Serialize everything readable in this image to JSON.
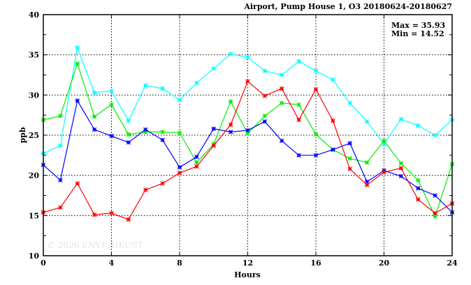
{
  "chart_data": {
    "type": "line",
    "title": "Airport, Pump House 1, O3 20180624-20180627",
    "xlabel": "Hours",
    "ylabel": "ppb",
    "xlim": [
      0,
      24
    ],
    "ylim": [
      10,
      40
    ],
    "xticks": [
      0,
      4,
      8,
      12,
      16,
      20,
      24
    ],
    "yticks": [
      10,
      15,
      20,
      25,
      30,
      35,
      40
    ],
    "grid": true,
    "annotations": [
      "Max = 35.93",
      "Min = 14.52"
    ],
    "watermark": "© 2026  ENVF, HKUST",
    "x": [
      0,
      1,
      2,
      3,
      4,
      5,
      6,
      7,
      8,
      9,
      10,
      11,
      12,
      13,
      14,
      15,
      16,
      17,
      18,
      19,
      20,
      21,
      22,
      23,
      24
    ],
    "series": [
      {
        "name": "cyan",
        "color": "#00ffff",
        "values": [
          22.7,
          23.7,
          35.9,
          30.3,
          30.5,
          26.8,
          31.2,
          30.8,
          29.4,
          31.5,
          33.3,
          35.1,
          34.7,
          33.0,
          32.5,
          34.2,
          33.0,
          31.9,
          29.0,
          26.7,
          23.9,
          27.0,
          26.2,
          25.0,
          26.9
        ]
      },
      {
        "name": "green",
        "color": "#00ee00",
        "values": [
          26.9,
          27.4,
          33.9,
          27.3,
          28.8,
          25.1,
          25.4,
          25.4,
          25.3,
          21.6,
          23.9,
          29.2,
          25.2,
          27.4,
          29.0,
          28.8,
          25.1,
          23.2,
          22.1,
          21.6,
          24.3,
          21.5,
          19.4,
          14.9,
          21.4
        ]
      },
      {
        "name": "blue",
        "color": "#0000ff",
        "values": [
          21.3,
          19.4,
          29.3,
          25.7,
          24.9,
          24.1,
          25.7,
          24.4,
          21.0,
          22.3,
          25.8,
          25.4,
          25.6,
          26.7,
          24.3,
          22.5,
          22.5,
          23.2,
          24.0,
          19.2,
          20.6,
          19.9,
          18.4,
          17.5,
          15.4
        ]
      },
      {
        "name": "red",
        "color": "#ff0000",
        "values": [
          15.4,
          16.0,
          19.0,
          15.1,
          15.3,
          14.5,
          18.2,
          19.0,
          20.3,
          21.1,
          23.7,
          26.3,
          31.7,
          29.9,
          30.8,
          26.9,
          30.7,
          26.8,
          20.8,
          18.8,
          20.4,
          20.9,
          17.0,
          15.3,
          16.5
        ]
      }
    ]
  }
}
